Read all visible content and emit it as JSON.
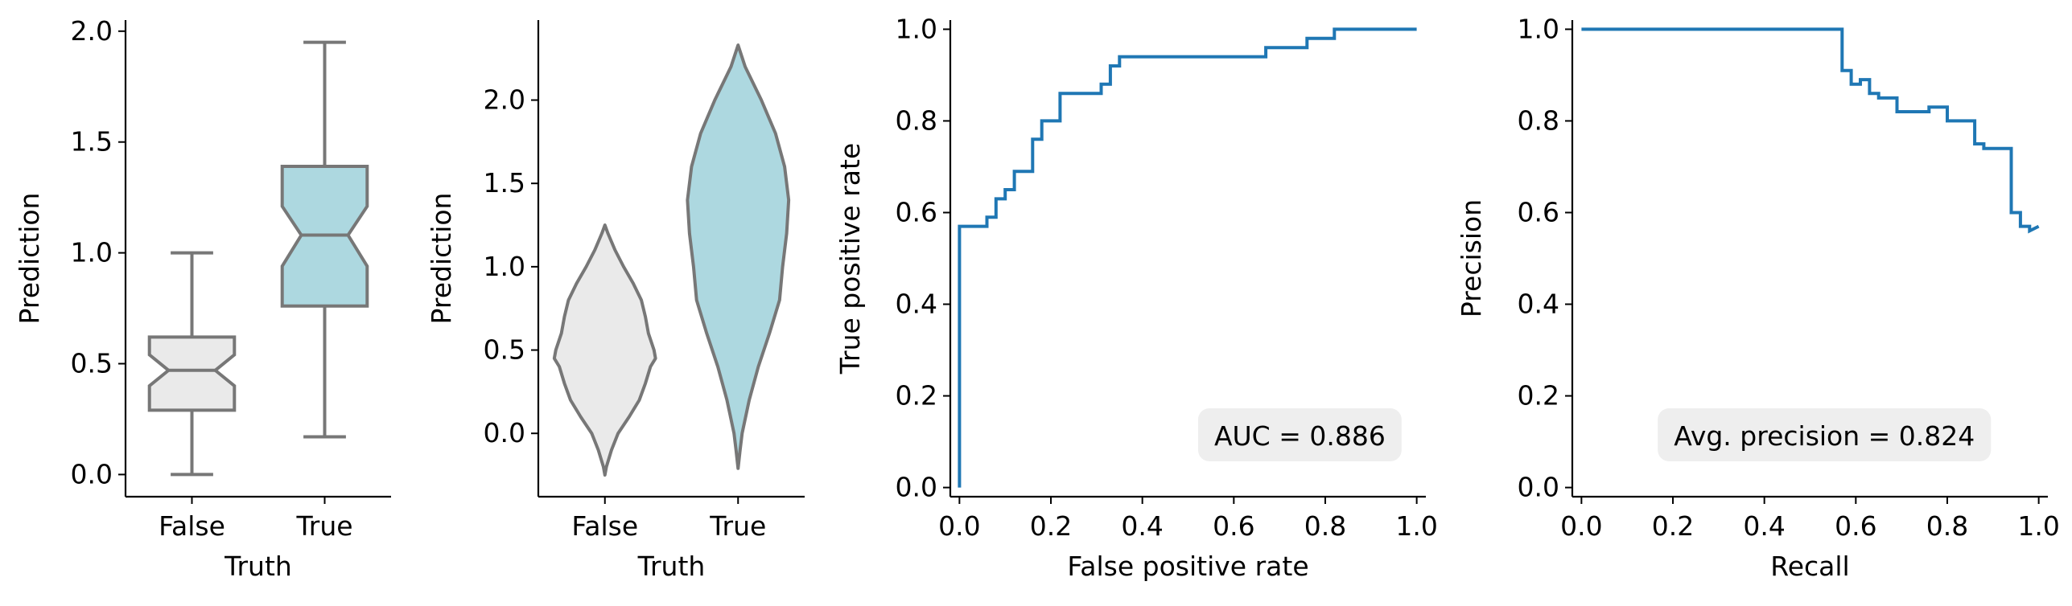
{
  "chart_data": [
    {
      "type": "box",
      "xlabel": "Truth",
      "ylabel": "Prediction",
      "categories": [
        "False",
        "True"
      ],
      "ylim": [
        -0.1,
        2.05
      ],
      "yticks": [
        "0.0",
        "0.5",
        "1.0",
        "1.5",
        "2.0"
      ],
      "ytick_values": [
        0.0,
        0.5,
        1.0,
        1.5,
        2.0
      ],
      "notched": true,
      "colors": [
        "#eaeaea",
        "#add8e0"
      ],
      "line_color": "#777777",
      "boxes": [
        {
          "category": "False",
          "min": 0.0,
          "q1": 0.29,
          "median": 0.47,
          "q3": 0.62,
          "max": 1.0,
          "notch_low": 0.4,
          "notch_high": 0.54
        },
        {
          "category": "True",
          "min": 0.17,
          "q1": 0.76,
          "median": 1.08,
          "q3": 1.39,
          "max": 1.95,
          "notch_low": 0.94,
          "notch_high": 1.21
        }
      ]
    },
    {
      "type": "violin",
      "xlabel": "Truth",
      "ylabel": "Prediction",
      "categories": [
        "False",
        "True"
      ],
      "ylim": [
        -0.38,
        2.48
      ],
      "yticks": [
        "0.0",
        "0.5",
        "1.0",
        "1.5",
        "2.0"
      ],
      "ytick_values": [
        0.0,
        0.5,
        1.0,
        1.5,
        2.0
      ],
      "colors": [
        "#eaeaea",
        "#add8e0"
      ],
      "line_color": "#777777",
      "violins": [
        {
          "category": "False",
          "profile": [
            [
              -0.25,
              0.0
            ],
            [
              -0.2,
              0.03
            ],
            [
              -0.1,
              0.13
            ],
            [
              0.0,
              0.26
            ],
            [
              0.1,
              0.48
            ],
            [
              0.2,
              0.68
            ],
            [
              0.3,
              0.8
            ],
            [
              0.4,
              0.9
            ],
            [
              0.45,
              1.0
            ],
            [
              0.5,
              0.97
            ],
            [
              0.6,
              0.86
            ],
            [
              0.7,
              0.8
            ],
            [
              0.8,
              0.72
            ],
            [
              0.9,
              0.56
            ],
            [
              1.0,
              0.37
            ],
            [
              1.1,
              0.2
            ],
            [
              1.2,
              0.06
            ],
            [
              1.25,
              0.0
            ]
          ]
        },
        {
          "category": "True",
          "profile": [
            [
              -0.21,
              0.0
            ],
            [
              -0.1,
              0.04
            ],
            [
              0.0,
              0.08
            ],
            [
              0.2,
              0.22
            ],
            [
              0.4,
              0.4
            ],
            [
              0.6,
              0.62
            ],
            [
              0.8,
              0.82
            ],
            [
              1.0,
              0.88
            ],
            [
              1.2,
              0.96
            ],
            [
              1.4,
              1.0
            ],
            [
              1.6,
              0.92
            ],
            [
              1.8,
              0.74
            ],
            [
              2.0,
              0.46
            ],
            [
              2.1,
              0.3
            ],
            [
              2.2,
              0.14
            ],
            [
              2.33,
              0.0
            ]
          ]
        }
      ]
    },
    {
      "type": "line",
      "title": "",
      "xlabel": "False positive rate",
      "ylabel": "True positive rate",
      "xlim": [
        -0.02,
        1.02
      ],
      "ylim": [
        -0.02,
        1.02
      ],
      "xticks": [
        "0.0",
        "0.2",
        "0.4",
        "0.6",
        "0.8",
        "1.0"
      ],
      "xtick_values": [
        0.0,
        0.2,
        0.4,
        0.6,
        0.8,
        1.0
      ],
      "yticks": [
        "0.0",
        "0.2",
        "0.4",
        "0.6",
        "0.8",
        "1.0"
      ],
      "ytick_values": [
        0.0,
        0.2,
        0.4,
        0.6,
        0.8,
        1.0
      ],
      "color": "#1f77b4",
      "annotation": "AUC = 0.886",
      "x": [
        0.0,
        0.0,
        0.06,
        0.06,
        0.08,
        0.08,
        0.1,
        0.1,
        0.12,
        0.12,
        0.16,
        0.16,
        0.18,
        0.18,
        0.22,
        0.22,
        0.31,
        0.31,
        0.33,
        0.33,
        0.35,
        0.35,
        0.67,
        0.67,
        0.76,
        0.76,
        0.82,
        0.82,
        1.0
      ],
      "y": [
        0.0,
        0.57,
        0.57,
        0.59,
        0.59,
        0.63,
        0.63,
        0.65,
        0.65,
        0.69,
        0.69,
        0.76,
        0.76,
        0.8,
        0.8,
        0.86,
        0.86,
        0.88,
        0.88,
        0.92,
        0.92,
        0.94,
        0.94,
        0.96,
        0.96,
        0.98,
        0.98,
        1.0,
        1.0
      ]
    },
    {
      "type": "line",
      "title": "",
      "xlabel": "Recall",
      "ylabel": "Precision",
      "xlim": [
        -0.02,
        1.02
      ],
      "ylim": [
        -0.02,
        1.02
      ],
      "xticks": [
        "0.0",
        "0.2",
        "0.4",
        "0.6",
        "0.8",
        "1.0"
      ],
      "xtick_values": [
        0.0,
        0.2,
        0.4,
        0.6,
        0.8,
        1.0
      ],
      "yticks": [
        "0.0",
        "0.2",
        "0.4",
        "0.6",
        "0.8",
        "1.0"
      ],
      "ytick_values": [
        0.0,
        0.2,
        0.4,
        0.6,
        0.8,
        1.0
      ],
      "color": "#1f77b4",
      "annotation": "Avg. precision = 0.824",
      "x": [
        0.0,
        0.57,
        0.57,
        0.59,
        0.59,
        0.61,
        0.61,
        0.63,
        0.63,
        0.65,
        0.65,
        0.69,
        0.69,
        0.76,
        0.76,
        0.8,
        0.8,
        0.86,
        0.86,
        0.88,
        0.88,
        0.92,
        0.92,
        0.94,
        0.94,
        0.96,
        0.96,
        0.98,
        0.98,
        1.0
      ],
      "y": [
        1.0,
        1.0,
        0.91,
        0.91,
        0.88,
        0.88,
        0.89,
        0.89,
        0.86,
        0.86,
        0.85,
        0.85,
        0.82,
        0.82,
        0.83,
        0.83,
        0.8,
        0.8,
        0.75,
        0.75,
        0.74,
        0.74,
        0.74,
        0.74,
        0.6,
        0.6,
        0.57,
        0.57,
        0.56,
        0.57
      ]
    }
  ]
}
